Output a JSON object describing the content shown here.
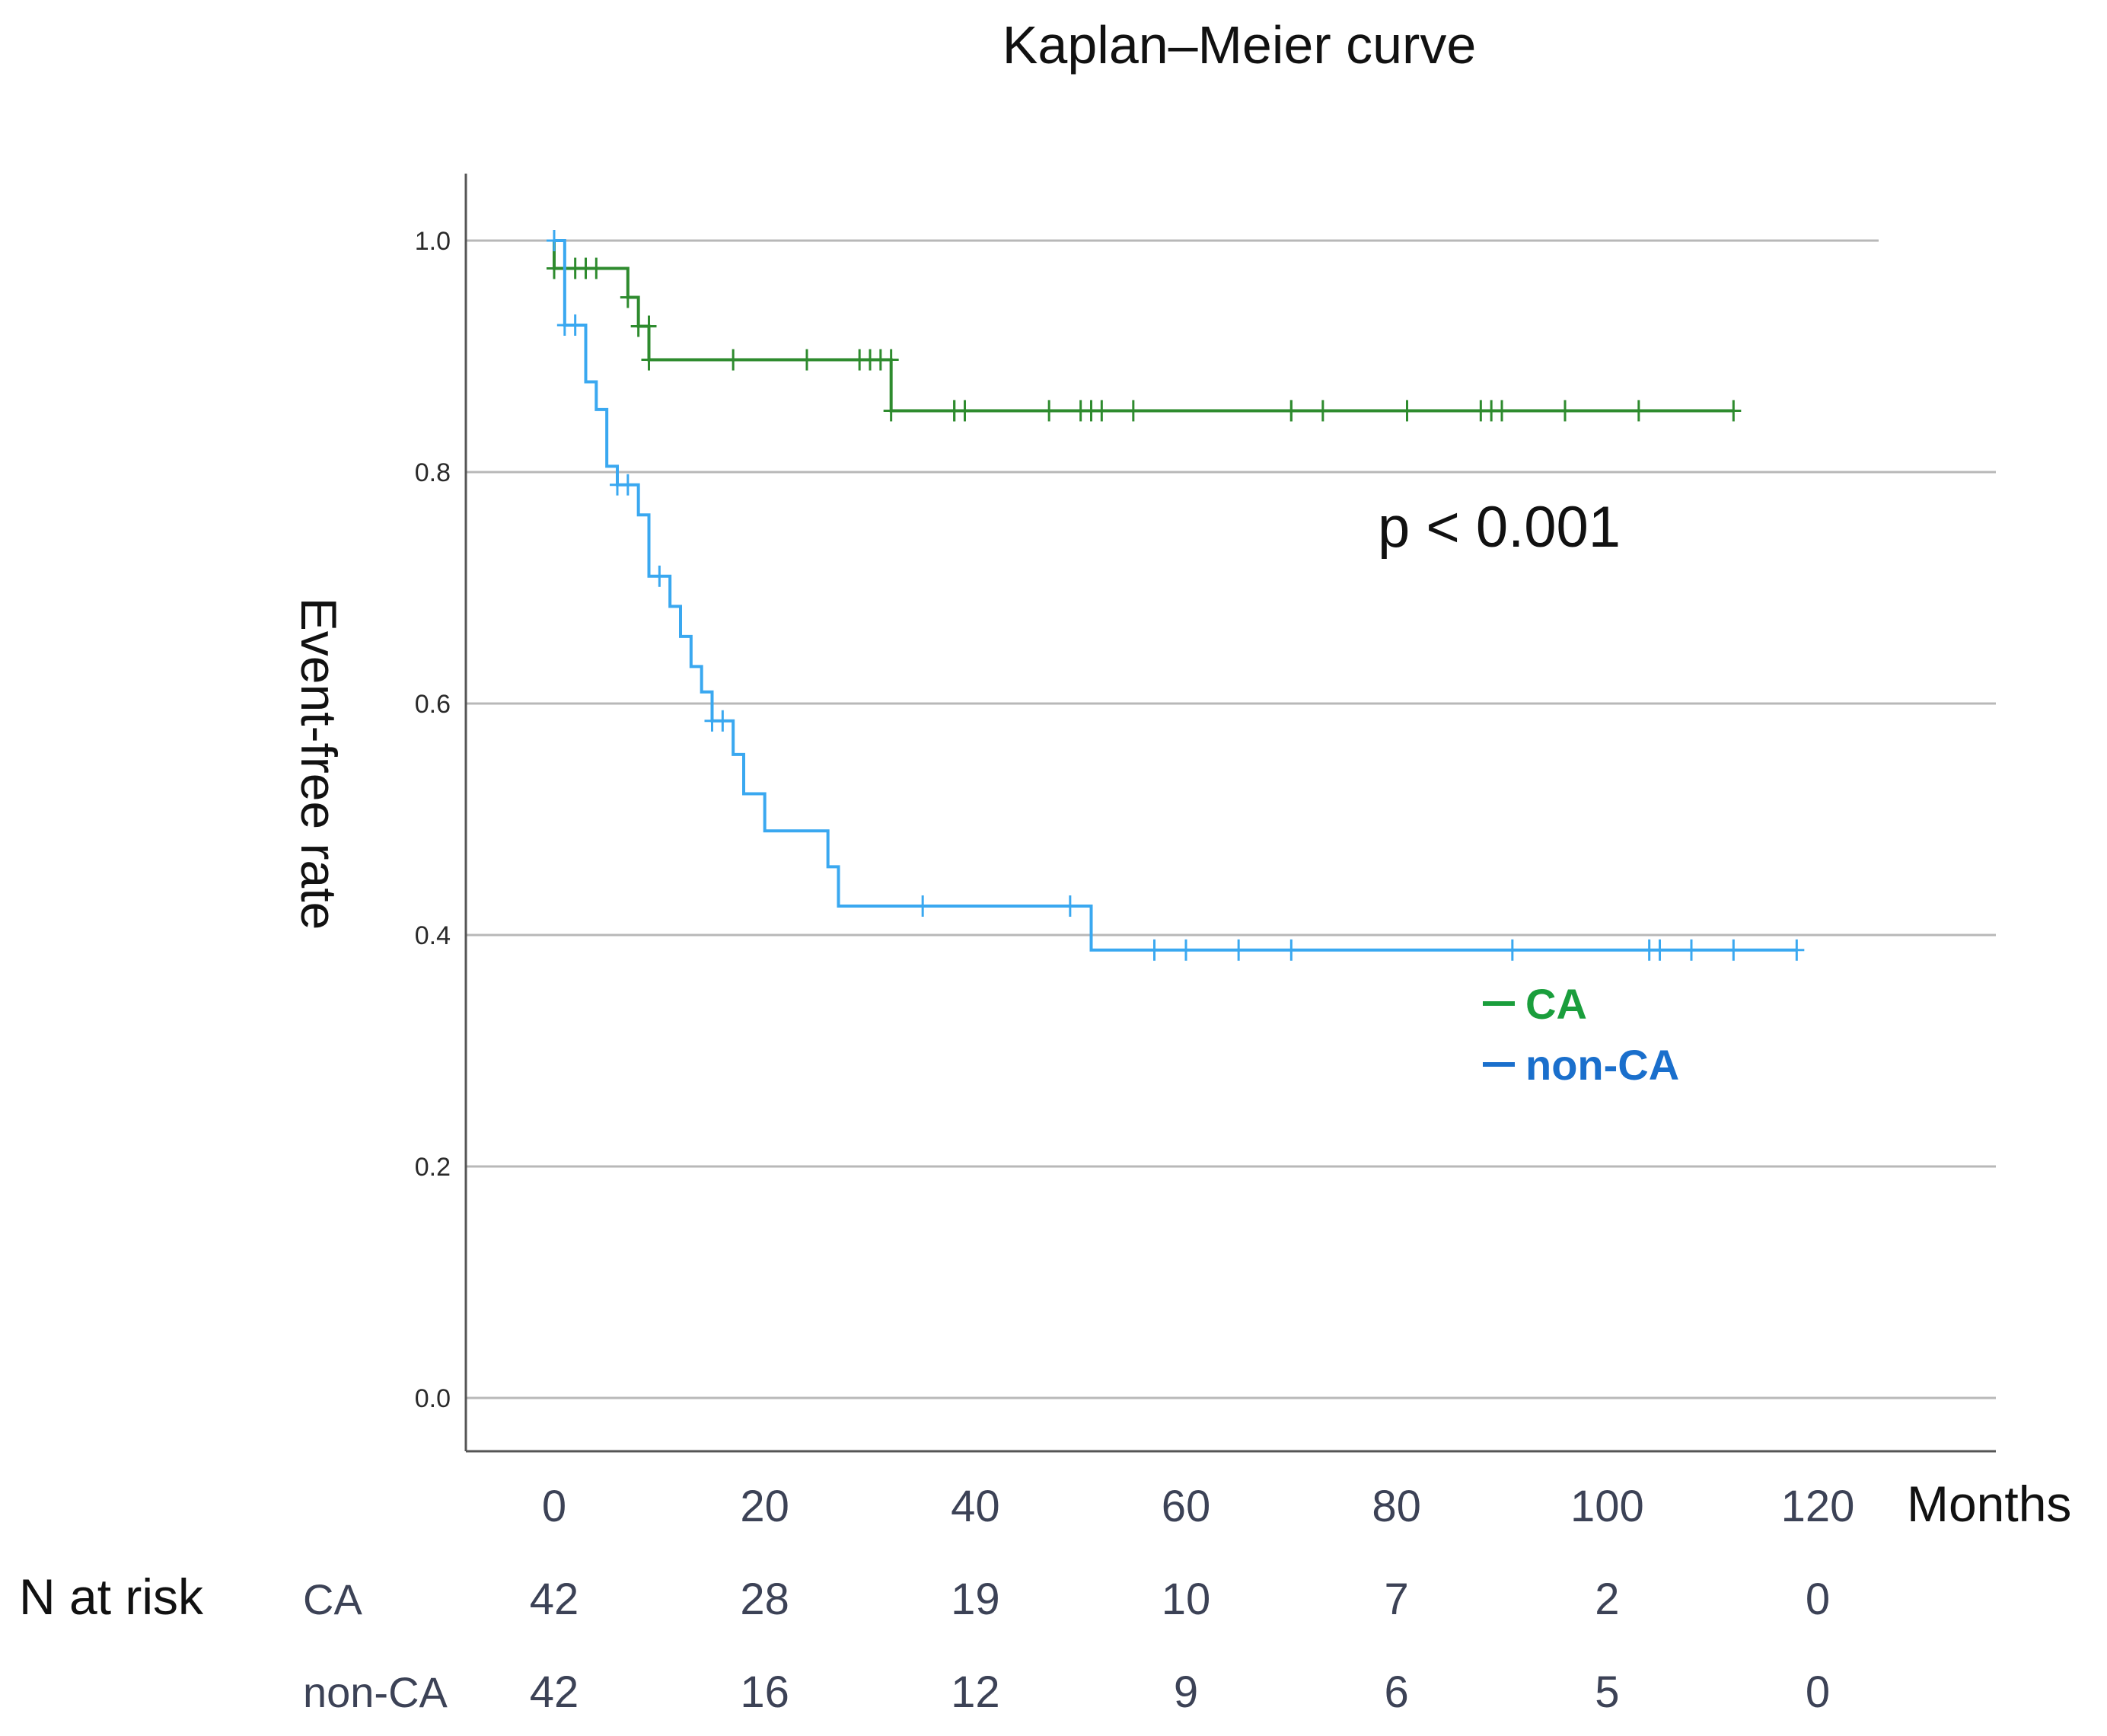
{
  "chart_data": {
    "type": "line",
    "subtype": "kaplan-meier",
    "title": "Kaplan–Meier curve",
    "ylabel": "Event-free rate",
    "xlabel": "Months",
    "ylim": [
      -0.05,
      1.05
    ],
    "xlim": [
      -2,
      138
    ],
    "x_ticks": [
      0,
      20,
      40,
      60,
      80,
      100,
      120
    ],
    "y_ticks": [
      0.0,
      0.2,
      0.4,
      0.6,
      0.8,
      1.0
    ],
    "y_tick_labels": [
      "0.0",
      "0.2",
      "0.4",
      "0.6",
      "0.8",
      "1.0"
    ],
    "grid": "horizontal",
    "annotation": "p < 0.001",
    "legend": [
      {
        "label": "CA",
        "color": "#1a9e3c"
      },
      {
        "label": "non-CA",
        "color": "#1a6fcc"
      }
    ],
    "series": [
      {
        "name": "CA",
        "color": "#2e8b2e",
        "steps": [
          [
            0,
            1.0
          ],
          [
            0,
            0.976
          ],
          [
            7,
            0.951
          ],
          [
            8,
            0.926
          ],
          [
            9,
            0.897
          ],
          [
            32,
            0.853
          ],
          [
            112,
            0.853
          ]
        ],
        "censored": [
          [
            0,
            0.976
          ],
          [
            2,
            0.976
          ],
          [
            3,
            0.976
          ],
          [
            4,
            0.976
          ],
          [
            7,
            0.951
          ],
          [
            8,
            0.926
          ],
          [
            9,
            0.926
          ],
          [
            9,
            0.897
          ],
          [
            17,
            0.897
          ],
          [
            24,
            0.897
          ],
          [
            29,
            0.897
          ],
          [
            30,
            0.897
          ],
          [
            31,
            0.897
          ],
          [
            32,
            0.897
          ],
          [
            32,
            0.853
          ],
          [
            38,
            0.853
          ],
          [
            38,
            0.853
          ],
          [
            39,
            0.853
          ],
          [
            47,
            0.853
          ],
          [
            50,
            0.853
          ],
          [
            51,
            0.853
          ],
          [
            52,
            0.853
          ],
          [
            55,
            0.853
          ],
          [
            70,
            0.853
          ],
          [
            70,
            0.853
          ],
          [
            73,
            0.853
          ],
          [
            81,
            0.853
          ],
          [
            88,
            0.853
          ],
          [
            89,
            0.853
          ],
          [
            90,
            0.853
          ],
          [
            96,
            0.853
          ],
          [
            103,
            0.853
          ],
          [
            112,
            0.853
          ]
        ]
      },
      {
        "name": "non-CA",
        "color": "#3aa8f0",
        "steps": [
          [
            0,
            1.0
          ],
          [
            1,
            0.976
          ],
          [
            1,
            0.927
          ],
          [
            3,
            0.927
          ],
          [
            3,
            0.902
          ],
          [
            3,
            0.878
          ],
          [
            4,
            0.854
          ],
          [
            5,
            0.829
          ],
          [
            5,
            0.805
          ],
          [
            6,
            0.789
          ],
          [
            8,
            0.763
          ],
          [
            9,
            0.737
          ],
          [
            9,
            0.71
          ],
          [
            11,
            0.684
          ],
          [
            12,
            0.658
          ],
          [
            13,
            0.632
          ],
          [
            14,
            0.61
          ],
          [
            15,
            0.585
          ],
          [
            17,
            0.556
          ],
          [
            18,
            0.522
          ],
          [
            20,
            0.49
          ],
          [
            26,
            0.459
          ],
          [
            27,
            0.425
          ],
          [
            51,
            0.387
          ],
          [
            118,
            0.387
          ]
        ],
        "censored": [
          [
            0,
            1.0
          ],
          [
            1,
            0.927
          ],
          [
            2,
            0.927
          ],
          [
            6,
            0.789
          ],
          [
            7,
            0.789
          ],
          [
            10,
            0.71
          ],
          [
            15,
            0.585
          ],
          [
            16,
            0.585
          ],
          [
            35,
            0.425
          ],
          [
            49,
            0.425
          ],
          [
            57,
            0.387
          ],
          [
            60,
            0.387
          ],
          [
            65,
            0.387
          ],
          [
            70,
            0.387
          ],
          [
            91,
            0.387
          ],
          [
            104,
            0.387
          ],
          [
            105,
            0.387
          ],
          [
            108,
            0.387
          ],
          [
            112,
            0.387
          ],
          [
            118,
            0.387
          ]
        ]
      }
    ],
    "risk_table": {
      "header": "N at risk",
      "times": [
        0,
        20,
        40,
        60,
        80,
        100,
        120
      ],
      "rows": [
        {
          "name": "CA",
          "values": [
            "42",
            "28",
            "19",
            "10",
            "7",
            "2",
            "0"
          ]
        },
        {
          "name": "non-CA",
          "values": [
            "42",
            "16",
            "12",
            "9",
            "6",
            "5",
            "0"
          ]
        }
      ]
    }
  }
}
